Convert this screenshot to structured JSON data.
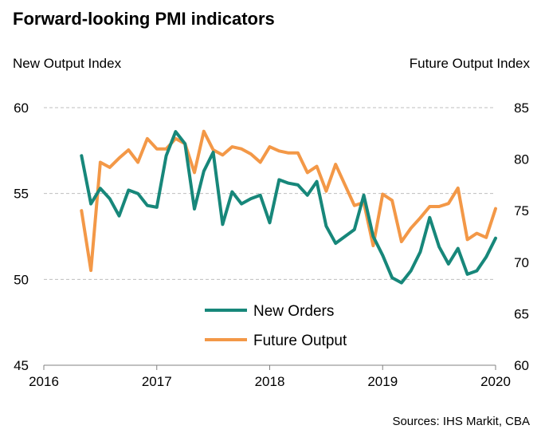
{
  "chart_data": {
    "type": "line",
    "title": "Forward-looking PMI indicators",
    "ylabel_left": "New Output Index",
    "ylabel_right": "Future Output Index",
    "source": "Sources: IHS Markit, CBA",
    "x_ticks": [
      "2016",
      "2017",
      "2018",
      "2019",
      "2020"
    ],
    "y_left_ticks": [
      "45",
      "50",
      "55",
      "60"
    ],
    "y_right_ticks": [
      "60",
      "65",
      "70",
      "75",
      "80",
      "85"
    ],
    "y_left_range": [
      45,
      60
    ],
    "y_right_range": [
      60,
      85
    ],
    "x_range": [
      "2016-01",
      "2020-01"
    ],
    "grid": true,
    "legend_position": "bottom-center",
    "colors": {
      "new_orders": "#17877A",
      "future_output": "#F39847",
      "grid": "#BFBFBF",
      "axis": "#808080"
    },
    "x": [
      "2016-05",
      "2016-06",
      "2016-07",
      "2016-08",
      "2016-09",
      "2016-10",
      "2016-11",
      "2016-12",
      "2017-01",
      "2017-02",
      "2017-03",
      "2017-04",
      "2017-05",
      "2017-06",
      "2017-07",
      "2017-08",
      "2017-09",
      "2017-10",
      "2017-11",
      "2017-12",
      "2018-01",
      "2018-02",
      "2018-03",
      "2018-04",
      "2018-05",
      "2018-06",
      "2018-07",
      "2018-08",
      "2018-09",
      "2018-10",
      "2018-11",
      "2018-12",
      "2019-01",
      "2019-02",
      "2019-03",
      "2019-04",
      "2019-05",
      "2019-06",
      "2019-07",
      "2019-08",
      "2019-09",
      "2019-10",
      "2019-11",
      "2019-12",
      "2020-01"
    ],
    "series": [
      {
        "name": "New Orders",
        "axis": "left",
        "values": [
          57.2,
          54.4,
          55.3,
          54.7,
          53.7,
          55.2,
          55.0,
          54.3,
          54.2,
          57.2,
          58.6,
          57.9,
          54.1,
          56.3,
          57.4,
          53.2,
          55.1,
          54.4,
          54.7,
          54.9,
          53.3,
          55.8,
          55.6,
          55.5,
          54.9,
          55.7,
          53.1,
          52.1,
          52.5,
          52.9,
          54.9,
          52.5,
          51.4,
          50.1,
          49.8,
          50.5,
          51.6,
          53.6,
          51.9,
          50.9,
          51.8,
          50.3,
          50.5,
          51.3,
          52.4
        ]
      },
      {
        "name": "Future Output",
        "axis": "right",
        "values": [
          75.0,
          69.2,
          79.7,
          79.2,
          80.1,
          80.9,
          79.7,
          82.0,
          81.0,
          81.0,
          82.0,
          81.5,
          78.7,
          82.7,
          80.9,
          80.4,
          81.2,
          81.0,
          80.5,
          79.7,
          81.2,
          80.8,
          80.6,
          80.6,
          78.7,
          79.3,
          76.9,
          79.5,
          77.5,
          75.5,
          75.8,
          71.6,
          76.6,
          76.0,
          72.0,
          73.3,
          74.3,
          75.4,
          75.4,
          75.7,
          77.2,
          72.2,
          72.8,
          72.4,
          75.2
        ]
      }
    ]
  }
}
